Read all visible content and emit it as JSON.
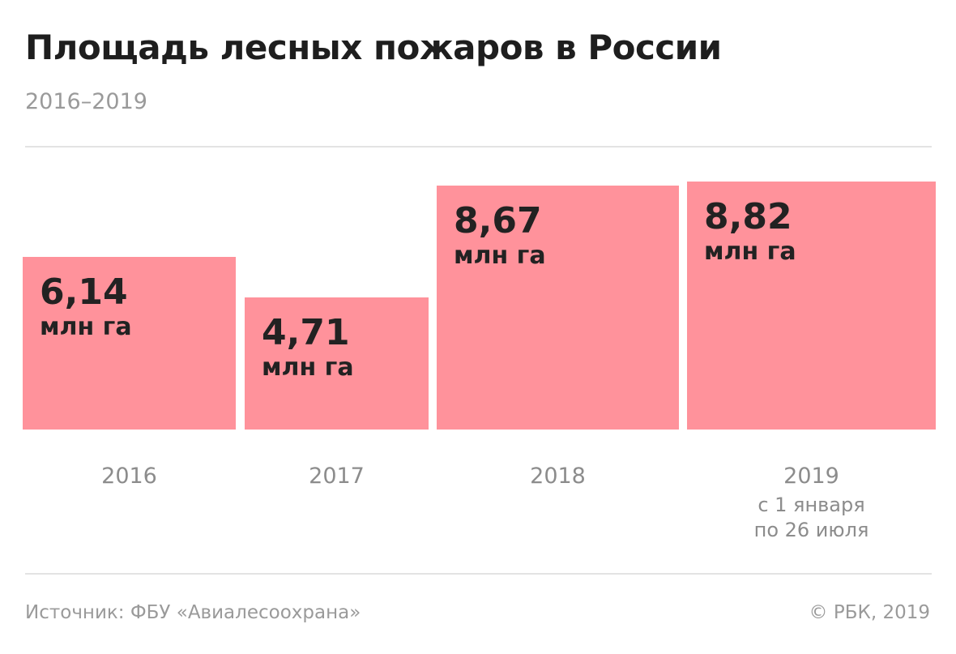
{
  "header": {
    "title": "Площадь лесных пожаров в России",
    "subtitle": "2016–2019"
  },
  "chart_data": {
    "type": "bar",
    "title": "Площадь лесных пожаров в России",
    "subtitle": "2016–2019",
    "categories": [
      "2016",
      "2017",
      "2018",
      "2019"
    ],
    "category_notes": [
      "",
      "",
      "",
      "с 1 января\nпо 26 июля"
    ],
    "values": [
      6.14,
      4.71,
      8.67,
      8.82
    ],
    "value_labels": [
      "6,14",
      "4,71",
      "8,67",
      "8,82"
    ],
    "unit": "млн га",
    "ylim": [
      0,
      8.82
    ],
    "grid": false,
    "bar_color": "#ff929b"
  },
  "footer": {
    "source": "Источник: ФБУ «Авиалесоохрана»",
    "copyright": "© РБК, 2019"
  }
}
